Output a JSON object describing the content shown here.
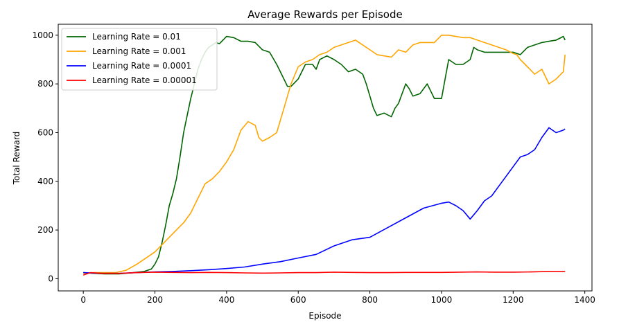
{
  "chart_data": {
    "type": "line",
    "title": "Average Rewards per Episode",
    "xlabel": "Episode",
    "ylabel": "Total Reward",
    "xlim": [
      -70,
      1420
    ],
    "ylim": [
      -50,
      1045
    ],
    "xticks": [
      0,
      200,
      400,
      600,
      800,
      1000,
      1200,
      1400
    ],
    "yticks": [
      0,
      200,
      400,
      600,
      800,
      1000
    ],
    "grid": false,
    "legend_position": "upper-left",
    "series": [
      {
        "name": "Learning Rate = 0.01",
        "color": "#006400",
        "x": [
          0,
          30,
          60,
          100,
          140,
          170,
          190,
          200,
          210,
          220,
          230,
          240,
          250,
          260,
          270,
          280,
          290,
          300,
          310,
          320,
          330,
          340,
          350,
          360,
          370,
          380,
          400,
          420,
          440,
          460,
          480,
          500,
          520,
          540,
          560,
          570,
          580,
          600,
          610,
          620,
          640,
          650,
          660,
          680,
          700,
          720,
          740,
          760,
          780,
          790,
          800,
          810,
          820,
          840,
          860,
          870,
          880,
          900,
          910,
          920,
          940,
          960,
          980,
          1000,
          1010,
          1020,
          1040,
          1060,
          1080,
          1090,
          1100,
          1120,
          1140,
          1160,
          1180,
          1200,
          1220,
          1240,
          1260,
          1280,
          1300,
          1320,
          1340,
          1345
        ],
        "y": [
          25,
          22,
          20,
          20,
          25,
          30,
          40,
          60,
          90,
          150,
          220,
          300,
          350,
          410,
          500,
          600,
          670,
          740,
          800,
          860,
          900,
          930,
          950,
          960,
          970,
          965,
          995,
          990,
          975,
          975,
          970,
          940,
          930,
          880,
          820,
          790,
          790,
          820,
          850,
          880,
          880,
          860,
          900,
          915,
          900,
          880,
          850,
          860,
          840,
          800,
          750,
          700,
          670,
          680,
          665,
          700,
          720,
          800,
          780,
          750,
          760,
          800,
          740,
          740,
          820,
          900,
          880,
          880,
          900,
          950,
          940,
          930,
          930,
          930,
          930,
          930,
          920,
          950,
          960,
          970,
          975,
          980,
          995,
          980
        ]
      },
      {
        "name": "Learning Rate = 0.001",
        "color": "#ffa500",
        "x": [
          0,
          30,
          60,
          90,
          120,
          150,
          180,
          200,
          220,
          240,
          260,
          280,
          300,
          320,
          340,
          360,
          380,
          400,
          420,
          440,
          460,
          480,
          490,
          500,
          520,
          530,
          540,
          560,
          580,
          600,
          620,
          640,
          660,
          680,
          700,
          720,
          740,
          760,
          780,
          800,
          820,
          840,
          860,
          880,
          900,
          920,
          940,
          960,
          980,
          1000,
          1020,
          1040,
          1060,
          1080,
          1100,
          1120,
          1140,
          1160,
          1180,
          1200,
          1210,
          1220,
          1240,
          1260,
          1280,
          1300,
          1320,
          1340,
          1345
        ],
        "y": [
          22,
          25,
          25,
          25,
          35,
          60,
          90,
          110,
          140,
          170,
          200,
          230,
          270,
          330,
          390,
          410,
          440,
          480,
          530,
          610,
          645,
          630,
          580,
          565,
          580,
          590,
          600,
          700,
          800,
          870,
          890,
          900,
          920,
          930,
          950,
          960,
          970,
          980,
          960,
          940,
          920,
          915,
          910,
          940,
          930,
          960,
          970,
          970,
          970,
          1000,
          1000,
          995,
          990,
          990,
          980,
          970,
          960,
          950,
          940,
          925,
          920,
          900,
          870,
          840,
          860,
          800,
          820,
          850,
          920
        ]
      },
      {
        "name": "Learning Rate = 0.0001",
        "color": "#0000ff",
        "x": [
          0,
          50,
          100,
          150,
          200,
          250,
          300,
          350,
          400,
          450,
          500,
          550,
          600,
          650,
          700,
          750,
          800,
          850,
          900,
          950,
          1000,
          1020,
          1040,
          1060,
          1080,
          1100,
          1120,
          1140,
          1160,
          1180,
          1200,
          1220,
          1240,
          1260,
          1280,
          1300,
          1320,
          1340,
          1345
        ],
        "y": [
          25,
          22,
          22,
          25,
          28,
          30,
          33,
          37,
          42,
          48,
          60,
          70,
          85,
          100,
          135,
          160,
          170,
          210,
          250,
          290,
          310,
          315,
          300,
          280,
          245,
          280,
          320,
          340,
          380,
          420,
          460,
          500,
          510,
          530,
          580,
          620,
          600,
          610,
          615
        ]
      },
      {
        "name": "Learning Rate = 0.00001",
        "color": "#ff0000",
        "x": [
          0,
          20,
          50,
          100,
          150,
          200,
          250,
          300,
          350,
          400,
          450,
          500,
          550,
          600,
          650,
          700,
          750,
          800,
          850,
          900,
          950,
          1000,
          1050,
          1100,
          1150,
          1200,
          1250,
          1300,
          1345
        ],
        "y": [
          15,
          25,
          22,
          22,
          25,
          27,
          26,
          25,
          26,
          25,
          24,
          23,
          24,
          25,
          25,
          27,
          26,
          25,
          25,
          26,
          26,
          26,
          27,
          28,
          27,
          27,
          28,
          30,
          30
        ]
      }
    ]
  }
}
